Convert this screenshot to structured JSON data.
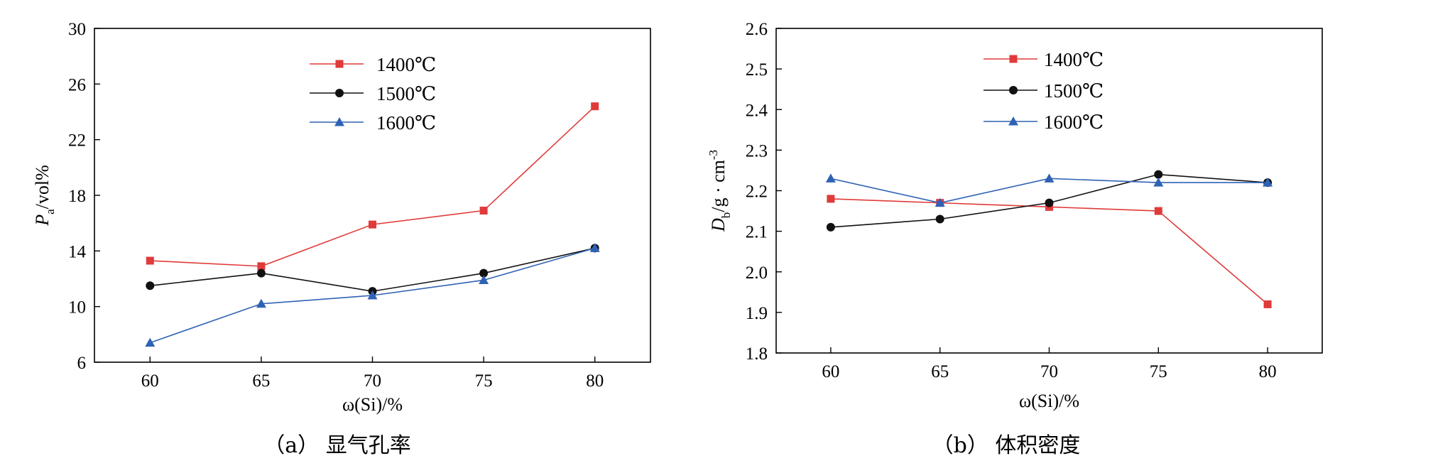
{
  "chart_data": [
    {
      "type": "line",
      "caption": "（a）  显气孔率",
      "xlabel": "ω(Si)/%",
      "ylabel": "Pa/vol%",
      "ylabel_main": "P",
      "ylabel_sub": "a",
      "ylabel_rest": "/vol%",
      "x": [
        60,
        65,
        70,
        75,
        80
      ],
      "xlim": [
        57.5,
        82.5
      ],
      "ylim": [
        6,
        30
      ],
      "xticks": [
        "60",
        "65",
        "70",
        "75",
        "80"
      ],
      "yticks": [
        "6",
        "10",
        "14",
        "18",
        "22",
        "26",
        "30"
      ],
      "legend_position": "top-center",
      "series": [
        {
          "name": "1400℃",
          "color": "#e03a3a",
          "marker": "square",
          "values": [
            13.3,
            12.9,
            15.9,
            16.9,
            24.4
          ]
        },
        {
          "name": "1500℃",
          "color": "#111111",
          "marker": "circle",
          "values": [
            11.5,
            12.4,
            11.1,
            12.4,
            14.2
          ]
        },
        {
          "name": "1600℃",
          "color": "#2f62b4",
          "marker": "triangle",
          "values": [
            7.4,
            10.2,
            10.8,
            11.9,
            14.2
          ]
        }
      ]
    },
    {
      "type": "line",
      "caption": "（b）  体积密度",
      "xlabel": "ω(Si)/%",
      "ylabel": "Db/g·cm-3",
      "ylabel_main": "D",
      "ylabel_sub": "b",
      "ylabel_rest": "/g · cm",
      "ylabel_sup": "-3",
      "x": [
        60,
        65,
        70,
        75,
        80
      ],
      "xlim": [
        57.5,
        82.5
      ],
      "ylim": [
        1.8,
        2.6
      ],
      "xticks": [
        "60",
        "65",
        "70",
        "75",
        "80"
      ],
      "yticks": [
        "1.8",
        "1.9",
        "2.0",
        "2.1",
        "2.2",
        "2.3",
        "2.4",
        "2.5",
        "2.6"
      ],
      "legend_position": "top-center",
      "series": [
        {
          "name": "1400℃",
          "color": "#e03a3a",
          "marker": "square",
          "values": [
            2.18,
            2.17,
            2.16,
            2.15,
            1.92
          ]
        },
        {
          "name": "1500℃",
          "color": "#111111",
          "marker": "circle",
          "values": [
            2.11,
            2.13,
            2.17,
            2.24,
            2.22
          ]
        },
        {
          "name": "1600℃",
          "color": "#2f62b4",
          "marker": "triangle",
          "values": [
            2.23,
            2.17,
            2.23,
            2.22,
            2.22
          ]
        }
      ]
    }
  ]
}
